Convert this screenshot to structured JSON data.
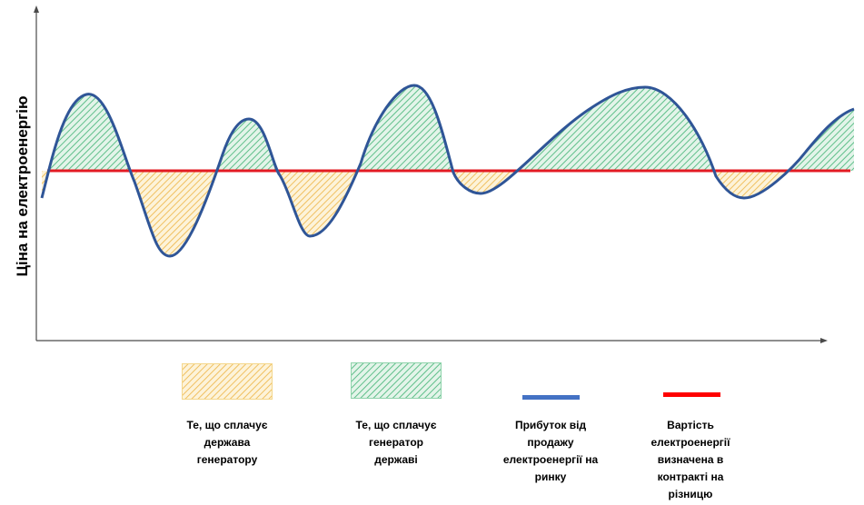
{
  "diagram": {
    "ylabel": "Ціна на електроенергію",
    "colors": {
      "market_price_line": "#2f5597",
      "contract_price_line": "#e31b23",
      "state_pays_fill": "#f4c95d",
      "generator_pays_fill": "#5fbf8a",
      "axis": "#4a4a4a"
    }
  },
  "legend": [
    {
      "id": "state-pays",
      "swatch": "hatch-yellow",
      "lines": [
        "Те, що сплачує",
        "держава",
        "генератору"
      ]
    },
    {
      "id": "generator-pays",
      "swatch": "hatch-green",
      "lines": [
        "Те, що сплачує",
        "генератор",
        "державі"
      ]
    },
    {
      "id": "market-income",
      "swatch": "blue-line",
      "lines": [
        "Прибуток від",
        "продажу",
        "електроенергії на",
        "ринку"
      ]
    },
    {
      "id": "contract-price",
      "swatch": "red-line",
      "lines": [
        "Вартість",
        "електроенергії",
        "визначена в",
        "контракті на",
        "різницю"
      ]
    }
  ]
}
